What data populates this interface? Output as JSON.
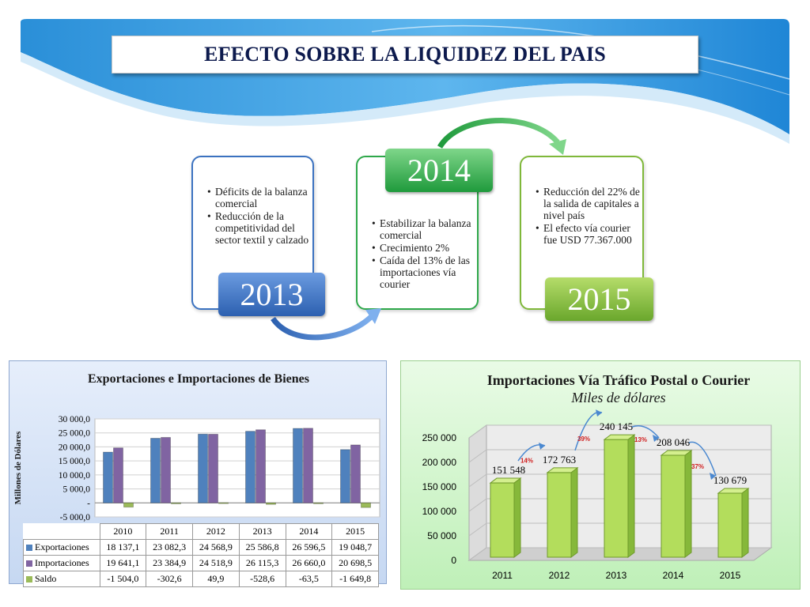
{
  "page_title": "EFECTO SOBRE LA LIQUIDEZ DEL PAIS",
  "timeline": [
    {
      "year": "2013",
      "bullets": [
        "Déficits de la balanza comercial",
        "Reducción de la competitividad del sector textil y calzado"
      ]
    },
    {
      "year": "2014",
      "bullets": [
        "Estabilizar la balanza comercial",
        "Crecimiento 2%",
        "Caída del 13% de las importaciones vía courier"
      ]
    },
    {
      "year": "2015",
      "bullets": [
        "Reducción del 22% de la salida de capitales  a nivel país",
        "El efecto vía courier fue USD 77.367.000"
      ]
    }
  ],
  "colors": {
    "exportaciones": "#4f81bd",
    "importaciones": "#8064a2",
    "saldo": "#9bbb59",
    "year_2013": "#3b72c0",
    "year_2014": "#2ea84a",
    "year_2015": "#7fb83a",
    "title": "#0d1a4d"
  },
  "chart_data": [
    {
      "type": "bar",
      "title": "Exportaciones e  Importaciones de Bienes",
      "ylabel": "Millones de Dólares",
      "categories": [
        "2010",
        "2011",
        "2012",
        "2013",
        "2014",
        "2015"
      ],
      "ylim": [
        -5000,
        30000
      ],
      "yticks": [
        30000,
        25000,
        20000,
        15000,
        10000,
        5000,
        0,
        -5000
      ],
      "ytick_labels": [
        "30 000,0",
        "25 000,0",
        "20 000,0",
        "15 000,0",
        "10 000,0",
        "5 000,0",
        "-",
        "-5 000,0"
      ],
      "grid": true,
      "series": [
        {
          "name": "Exportaciones",
          "values": [
            18137.1,
            23082.3,
            24568.9,
            25586.8,
            26596.5,
            19048.7
          ],
          "labels": [
            "18 137,1",
            "23 082,3",
            "24 568,9",
            "25 586,8",
            "26 596,5",
            "19 048,7"
          ]
        },
        {
          "name": "Importaciones",
          "values": [
            19641.1,
            23384.9,
            24518.9,
            26115.3,
            26660.0,
            20698.5
          ],
          "labels": [
            "19 641,1",
            "23 384,9",
            "24 518,9",
            "26 115,3",
            "26 660,0",
            "20 698,5"
          ]
        },
        {
          "name": "Saldo",
          "values": [
            -1504.0,
            -302.6,
            49.9,
            -528.6,
            -63.5,
            -1649.8
          ],
          "labels": [
            "-1 504,0",
            "-302,6",
            "49,9",
            "-528,6",
            "-63,5",
            "-1 649,8"
          ]
        }
      ]
    },
    {
      "type": "bar",
      "title": "Importaciones Vía Tráfico Postal o Courier",
      "subtitle": "Miles de dólares",
      "categories": [
        "2011",
        "2012",
        "2013",
        "2014",
        "2015"
      ],
      "values": [
        151548,
        172763,
        240145,
        208046,
        130679
      ],
      "value_labels": [
        "151 548",
        "172 763",
        "240 145",
        "208 046",
        "130 679"
      ],
      "ylim": [
        0,
        250000
      ],
      "yticks": [
        0,
        50000,
        100000,
        150000,
        200000,
        250000
      ],
      "ytick_labels": [
        "0",
        "50 000",
        "100 000",
        "150 000",
        "200 000",
        "250 000"
      ],
      "grid": true,
      "annotations": [
        {
          "text": "14%",
          "between": [
            "2011",
            "2012"
          ],
          "direction": "up"
        },
        {
          "text": "39%",
          "between": [
            "2012",
            "2013"
          ],
          "direction": "up"
        },
        {
          "text": "13%",
          "between": [
            "2013",
            "2014"
          ],
          "direction": "down"
        },
        {
          "text": "37%",
          "between": [
            "2014",
            "2015"
          ],
          "direction": "down"
        }
      ]
    }
  ]
}
